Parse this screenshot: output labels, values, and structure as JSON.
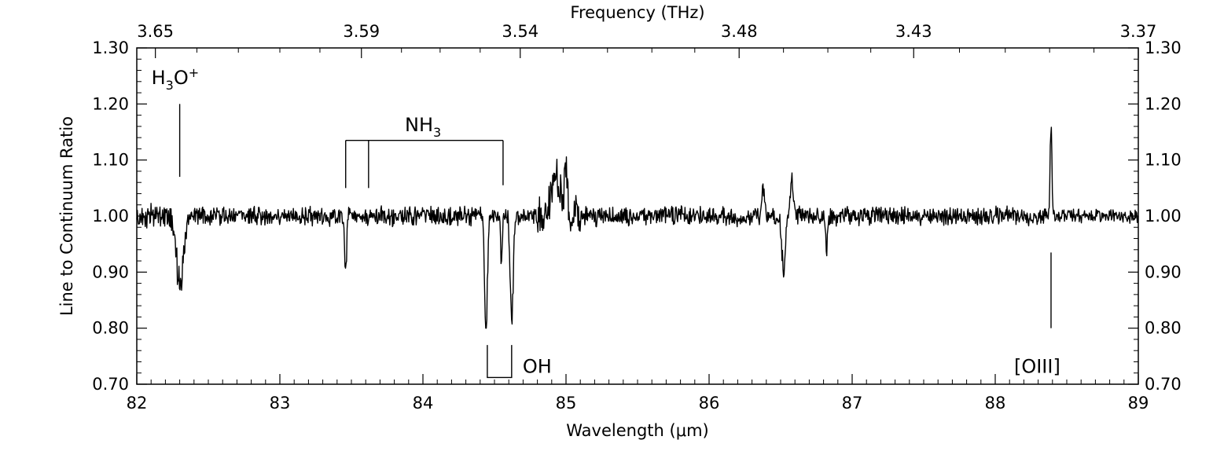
{
  "chart_data": {
    "type": "line",
    "title": "",
    "xlabel": "Wavelength (μm)",
    "ylabel": "Line to Continuum Ratio",
    "x2label": "Frequency (THz)",
    "xlim": [
      82,
      89
    ],
    "ylim": [
      0.7,
      1.3
    ],
    "xticks": [
      82,
      83,
      84,
      85,
      86,
      87,
      88,
      89
    ],
    "xtick_labels": [
      "82",
      "83",
      "84",
      "85",
      "86",
      "87",
      "88",
      "89"
    ],
    "yticks": [
      0.7,
      0.8,
      0.9,
      1.0,
      1.1,
      1.2,
      1.3
    ],
    "ytick_labels": [
      "0.70",
      "0.80",
      "0.90",
      "1.00",
      "1.10",
      "1.20",
      "1.30"
    ],
    "top_ticks_wavelength": [
      82.13,
      83.57,
      84.68,
      86.21,
      87.43,
      89.0
    ],
    "top_tick_labels": [
      "3.65",
      "3.59",
      "3.54",
      "3.48",
      "3.43",
      "3.37"
    ],
    "grid": false,
    "legend": "none",
    "line_color": "#000000",
    "continuum_level": 1.0,
    "features": [
      {
        "wavelength": 82.3,
        "depth": -0.125,
        "width": 0.025
      },
      {
        "wavelength": 83.46,
        "depth": -0.12,
        "width": 0.006
      },
      {
        "wavelength": 84.44,
        "depth": -0.2,
        "width": 0.01
      },
      {
        "wavelength": 84.55,
        "depth": -0.09,
        "width": 0.005
      },
      {
        "wavelength": 84.62,
        "depth": -0.2,
        "width": 0.01
      },
      {
        "wavelength": 84.93,
        "depth": 0.08,
        "width": 0.03
      },
      {
        "wavelength": 85.0,
        "depth": 0.09,
        "width": 0.01
      },
      {
        "wavelength": 86.38,
        "depth": 0.06,
        "width": 0.01
      },
      {
        "wavelength": 86.52,
        "depth": -0.1,
        "width": 0.012
      },
      {
        "wavelength": 86.58,
        "depth": 0.07,
        "width": 0.01
      },
      {
        "wavelength": 86.82,
        "depth": -0.07,
        "width": 0.006
      },
      {
        "wavelength": 88.39,
        "depth": 0.165,
        "width": 0.006
      }
    ],
    "annotations": [
      {
        "id": "h3o",
        "main": "H",
        "sub": "3",
        "tail": "O",
        "sup": "+",
        "x_wavelength": 82.3,
        "y": 1.2,
        "marker_from": 1.07,
        "marker_to": 1.2
      },
      {
        "id": "nh3",
        "main": "NH",
        "sub": "3",
        "lines_wavelength": [
          83.46,
          83.62,
          84.56
        ],
        "bracket_y": 1.135,
        "bottom_y": [
          1.05,
          1.05,
          1.055
        ]
      },
      {
        "id": "oh",
        "text": "OH",
        "lines_wavelength": [
          84.45,
          84.62
        ],
        "from_y": 0.77,
        "to_y": 0.712
      },
      {
        "id": "oiii",
        "text": "[OIII]",
        "x_wavelength": 88.39,
        "marker_from": 0.8,
        "marker_to": 0.935
      }
    ]
  }
}
